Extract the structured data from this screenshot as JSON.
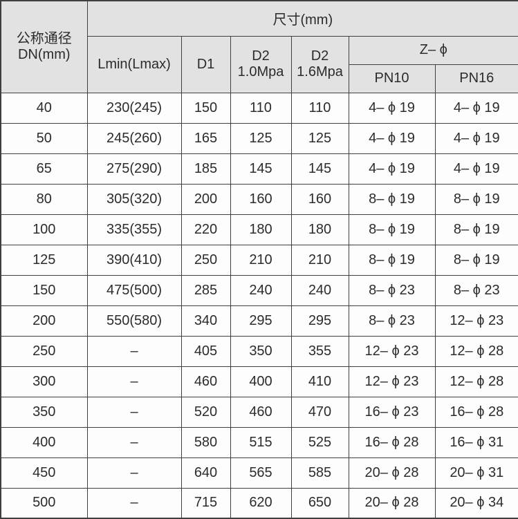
{
  "table": {
    "title": "尺寸(mm)",
    "header": {
      "dn_line1": "公称通径",
      "dn_line2": "DN(mm)",
      "size_label": "尺寸(mm)",
      "lmin": "Lmin(Lmax)",
      "d1": "D1",
      "d2_10_line1": "D2",
      "d2_10_line2": "1.0Mpa",
      "d2_16_line1": "D2",
      "d2_16_line2": "1.6Mpa",
      "z_phi": "Z– ϕ",
      "pn10": "PN10",
      "pn16": "PN16"
    },
    "rows": [
      {
        "dn": "40",
        "lmin": "230(245)",
        "d1": "150",
        "d2_10": "110",
        "d2_16": "110",
        "pn10": "4– ϕ 19",
        "pn16": "4– ϕ 19"
      },
      {
        "dn": "50",
        "lmin": "245(260)",
        "d1": "165",
        "d2_10": "125",
        "d2_16": "125",
        "pn10": "4– ϕ 19",
        "pn16": "4– ϕ 19"
      },
      {
        "dn": "65",
        "lmin": "275(290)",
        "d1": "185",
        "d2_10": "145",
        "d2_16": "145",
        "pn10": "4– ϕ 19",
        "pn16": "4– ϕ 19"
      },
      {
        "dn": "80",
        "lmin": "305(320)",
        "d1": "200",
        "d2_10": "160",
        "d2_16": "160",
        "pn10": "8– ϕ 19",
        "pn16": "8– ϕ 19"
      },
      {
        "dn": "100",
        "lmin": "335(355)",
        "d1": "220",
        "d2_10": "180",
        "d2_16": "180",
        "pn10": "8– ϕ 19",
        "pn16": "8– ϕ 19"
      },
      {
        "dn": "125",
        "lmin": "390(410)",
        "d1": "250",
        "d2_10": "210",
        "d2_16": "210",
        "pn10": "8– ϕ 19",
        "pn16": "8– ϕ 19"
      },
      {
        "dn": "150",
        "lmin": "475(500)",
        "d1": "285",
        "d2_10": "240",
        "d2_16": "240",
        "pn10": "8– ϕ 23",
        "pn16": "8– ϕ 23"
      },
      {
        "dn": "200",
        "lmin": "550(580)",
        "d1": "340",
        "d2_10": "295",
        "d2_16": "295",
        "pn10": "8– ϕ 23",
        "pn16": "12– ϕ 23"
      },
      {
        "dn": "250",
        "lmin": "–",
        "d1": "405",
        "d2_10": "350",
        "d2_16": "355",
        "pn10": "12– ϕ 23",
        "pn16": "12– ϕ 28"
      },
      {
        "dn": "300",
        "lmin": "–",
        "d1": "460",
        "d2_10": "400",
        "d2_16": "410",
        "pn10": "12– ϕ 23",
        "pn16": "12– ϕ 28"
      },
      {
        "dn": "350",
        "lmin": "–",
        "d1": "520",
        "d2_10": "460",
        "d2_16": "470",
        "pn10": "16– ϕ 23",
        "pn16": "16– ϕ 28"
      },
      {
        "dn": "400",
        "lmin": "–",
        "d1": "580",
        "d2_10": "515",
        "d2_16": "525",
        "pn10": "16– ϕ 28",
        "pn16": "16– ϕ 31"
      },
      {
        "dn": "450",
        "lmin": "–",
        "d1": "640",
        "d2_10": "565",
        "d2_16": "585",
        "pn10": "20– ϕ 28",
        "pn16": "20– ϕ 31"
      },
      {
        "dn": "500",
        "lmin": "–",
        "d1": "715",
        "d2_10": "620",
        "d2_16": "650",
        "pn10": "20– ϕ 28",
        "pn16": "20– ϕ 34"
      }
    ]
  },
  "chart_data": {
    "type": "table",
    "title": "尺寸(mm)",
    "columns": [
      "公称通径 DN(mm)",
      "Lmin(Lmax)",
      "D1",
      "D2 1.0Mpa",
      "D2 1.6Mpa",
      "Z–ϕ PN10",
      "Z–ϕ PN16"
    ],
    "rows": [
      [
        "40",
        "230(245)",
        "150",
        "110",
        "110",
        "4–ϕ19",
        "4–ϕ19"
      ],
      [
        "50",
        "245(260)",
        "165",
        "125",
        "125",
        "4–ϕ19",
        "4–ϕ19"
      ],
      [
        "65",
        "275(290)",
        "185",
        "145",
        "145",
        "4–ϕ19",
        "4–ϕ19"
      ],
      [
        "80",
        "305(320)",
        "200",
        "160",
        "160",
        "8–ϕ19",
        "8–ϕ19"
      ],
      [
        "100",
        "335(355)",
        "220",
        "180",
        "180",
        "8–ϕ19",
        "8–ϕ19"
      ],
      [
        "125",
        "390(410)",
        "250",
        "210",
        "210",
        "8–ϕ19",
        "8–ϕ19"
      ],
      [
        "150",
        "475(500)",
        "285",
        "240",
        "240",
        "8–ϕ23",
        "8–ϕ23"
      ],
      [
        "200",
        "550(580)",
        "340",
        "295",
        "295",
        "8–ϕ23",
        "12–ϕ23"
      ],
      [
        "250",
        "–",
        "405",
        "350",
        "355",
        "12–ϕ23",
        "12–ϕ28"
      ],
      [
        "300",
        "–",
        "460",
        "400",
        "410",
        "12–ϕ23",
        "12–ϕ28"
      ],
      [
        "350",
        "–",
        "520",
        "460",
        "470",
        "16–ϕ23",
        "16–ϕ28"
      ],
      [
        "400",
        "–",
        "580",
        "515",
        "525",
        "16–ϕ28",
        "16–ϕ31"
      ],
      [
        "450",
        "–",
        "640",
        "565",
        "585",
        "20–ϕ28",
        "20–ϕ31"
      ],
      [
        "500",
        "–",
        "715",
        "620",
        "650",
        "20–ϕ28",
        "20–ϕ34"
      ]
    ]
  },
  "colors": {
    "header_bg": "#e2e2e2",
    "border": "#3f3f3f",
    "text": "#2b2b2b"
  }
}
